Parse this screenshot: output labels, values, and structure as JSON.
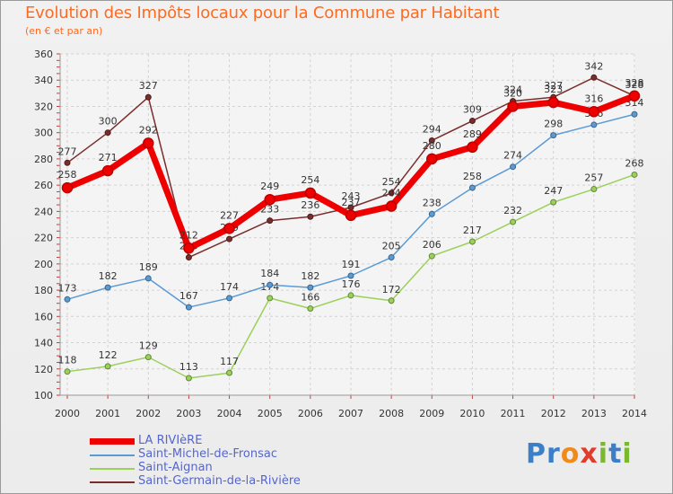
{
  "header": {
    "title": "Evolution des Impôts locaux pour la Commune par Habitant",
    "subtitle": "(en € et par an)"
  },
  "logo": {
    "text": "Proxiti",
    "letters": [
      "P",
      "r",
      "o",
      "x",
      "i",
      "t",
      "i"
    ],
    "colors": [
      "#3a7fc8",
      "#3a7fc8",
      "#f08a18",
      "#e33b2b",
      "#7ab82d",
      "#3a7fc8",
      "#7ab82d"
    ]
  },
  "chart_data": {
    "type": "line",
    "title": "Evolution des Impôts locaux pour la Commune par Habitant",
    "subtitle": "(en € et par an)",
    "xlabel": "",
    "ylabel": "",
    "x": [
      2000,
      2001,
      2002,
      2003,
      2004,
      2005,
      2006,
      2007,
      2008,
      2009,
      2010,
      2011,
      2012,
      2013,
      2014
    ],
    "ylim": [
      100,
      360
    ],
    "yticks": [
      100,
      120,
      140,
      160,
      180,
      200,
      220,
      240,
      260,
      280,
      300,
      320,
      340,
      360
    ],
    "grid": true,
    "legend_position": "bottom-left",
    "series": [
      {
        "name": "Saint-Aignan",
        "color": "#9bd05a",
        "width": 1.5,
        "values": [
          118,
          122,
          129,
          113,
          117,
          174,
          166,
          176,
          172,
          206,
          217,
          232,
          247,
          257,
          268
        ]
      },
      {
        "name": "Saint-Michel-de-Fronsac",
        "color": "#5b9bd5",
        "width": 1.5,
        "values": [
          173,
          182,
          189,
          167,
          174,
          184,
          182,
          191,
          205,
          238,
          258,
          274,
          298,
          306,
          314
        ]
      },
      {
        "name": "Saint-Germain-de-la-Rivière",
        "color": "#7a2d2d",
        "width": 1.5,
        "values": [
          277,
          300,
          327,
          205,
          219,
          233,
          236,
          243,
          254,
          294,
          309,
          324,
          327,
          342,
          328
        ]
      },
      {
        "name": "LA RIVIèRE",
        "color": "#ee0000",
        "width": 7,
        "values": [
          258,
          271,
          292,
          212,
          227,
          249,
          254,
          237,
          244,
          280,
          289,
          320,
          323,
          316,
          328
        ]
      }
    ],
    "legend_order": [
      "LA RIVIèRE",
      "Saint-Michel-de-Fronsac",
      "Saint-Aignan",
      "Saint-Germain-de-la-Rivière"
    ]
  }
}
